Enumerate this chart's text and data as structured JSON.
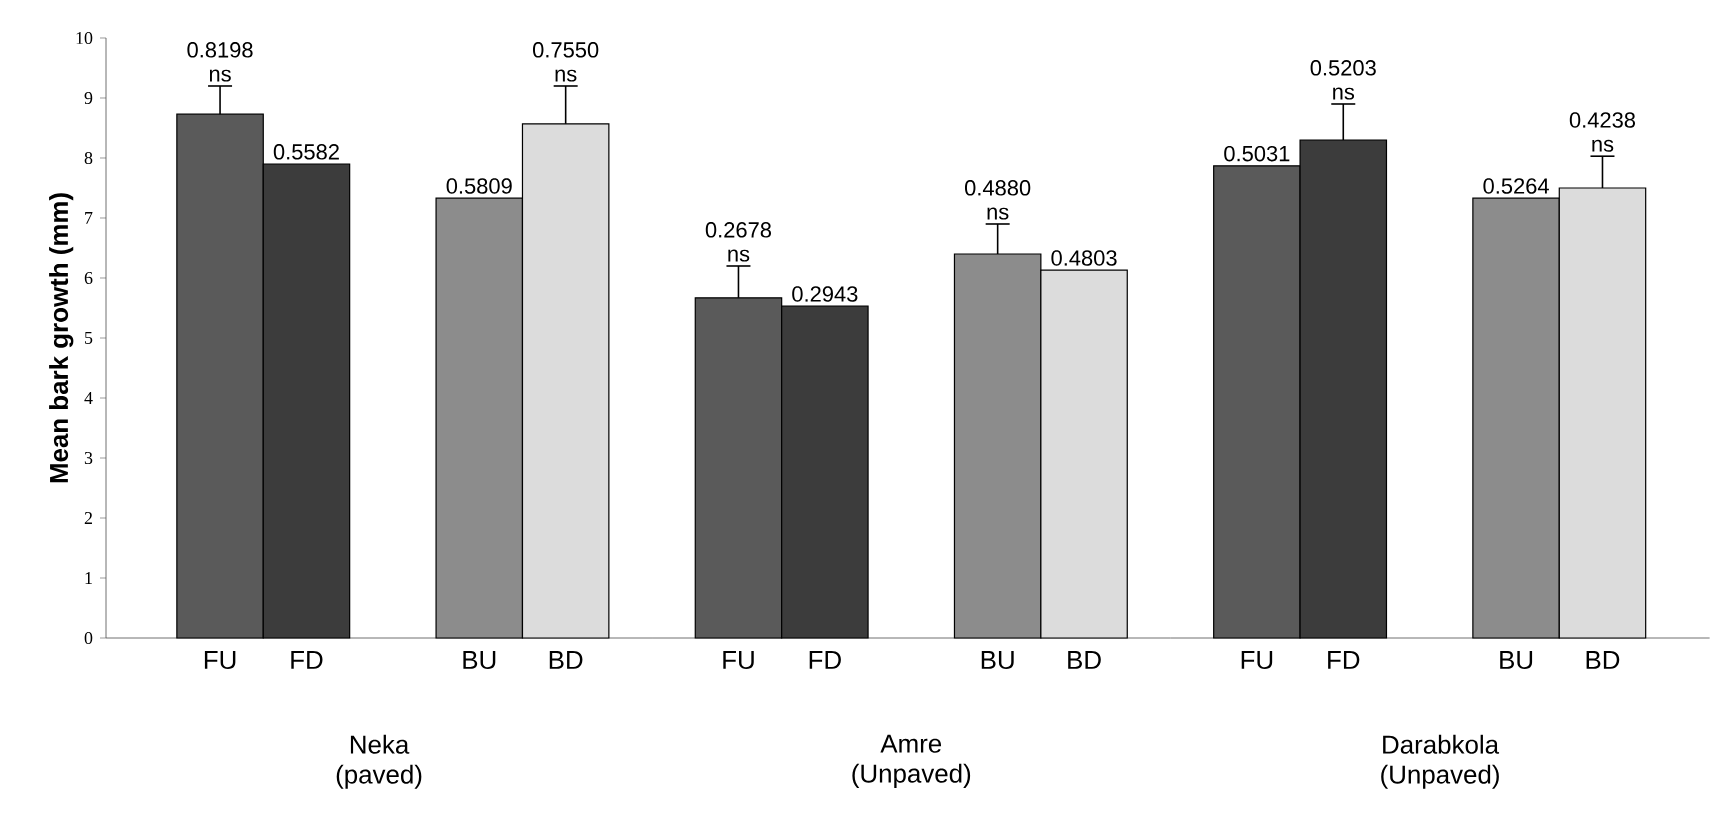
{
  "chart_data": [
    {
      "type": "bar",
      "ylabel": "Mean bark growth (mm)",
      "xlabel": "Neka (paved)",
      "categories": [
        "FU",
        "FD",
        "BU",
        "BD"
      ],
      "values": [
        8.73,
        7.9,
        7.33,
        8.57
      ],
      "errors": [
        0.47,
        null,
        null,
        0.63
      ],
      "colors": [
        "#5a5a5a",
        "#3c3c3c",
        "#8c8c8c",
        "#dcdcdc"
      ],
      "ylim": [
        0,
        10
      ],
      "yticks": [
        0,
        1,
        2,
        3,
        4,
        5,
        6,
        7,
        8,
        9,
        10
      ],
      "annotations": [
        {
          "text": "0.8198",
          "x": "FU",
          "y": 9.2
        },
        {
          "text": "ns",
          "x": "FU",
          "y": 9.2
        },
        {
          "text": "0.5582",
          "x": "FD",
          "y": 7.9
        },
        {
          "text": "0.5809",
          "x": "BU",
          "y": 7.33
        },
        {
          "text": "0.7550",
          "x": "BD",
          "y": 9.2
        },
        {
          "text": "ns",
          "x": "BD",
          "y": 9.2
        }
      ]
    },
    {
      "type": "bar",
      "xlabel": "Amre (Unpaved)",
      "categories": [
        "FU",
        "FD",
        "BU",
        "BD"
      ],
      "values": [
        5.67,
        5.53,
        6.4,
        6.13
      ],
      "errors": [
        0.53,
        null,
        0.5,
        null
      ],
      "colors": [
        "#5a5a5a",
        "#3c3c3c",
        "#8c8c8c",
        "#dcdcdc"
      ],
      "ylim": [
        0,
        10
      ],
      "tick_labels": "x",
      "annotations": [
        {
          "text": "0.2678",
          "x": "FU",
          "y": 6.2
        },
        {
          "text": "ns",
          "x": "FU",
          "y": 6.2
        },
        {
          "text": "0.2943",
          "x": "FD",
          "y": 5.53
        },
        {
          "text": "0.4880",
          "x": "BU",
          "y": 6.4
        },
        {
          "text": "ns",
          "x": "BU",
          "y": 6.4
        },
        {
          "text": "0.4803",
          "x": "BD",
          "y": 6.13
        }
      ]
    },
    {
      "type": "bar",
      "xlabel": "Darabkola (Unpaved)",
      "categories": [
        "FU",
        "FD",
        "BU",
        "BD"
      ],
      "values": [
        7.87,
        8.3,
        7.33,
        7.5
      ],
      "errors": [
        null,
        0.6,
        null,
        0.53
      ],
      "colors": [
        "#5a5a5a",
        "#3c3c3c",
        "#8c8c8c",
        "#dcdcdc"
      ],
      "ylim": [
        0,
        10
      ],
      "tick_labels": "x",
      "annotations": [
        {
          "text": "0.5031",
          "x": "FU",
          "y": 7.87
        },
        {
          "text": "0.5203",
          "x": "FD",
          "y": 8.3
        },
        {
          "text": "ns",
          "x": "FD",
          "y": 8.3
        },
        {
          "text": "0.5264",
          "x": "BU",
          "y": 7.33
        },
        {
          "text": "0.4238",
          "x": "BD",
          "y": 8.03
        },
        {
          "text": "ns",
          "x": "BD",
          "y": 8.03
        }
      ]
    }
  ]
}
